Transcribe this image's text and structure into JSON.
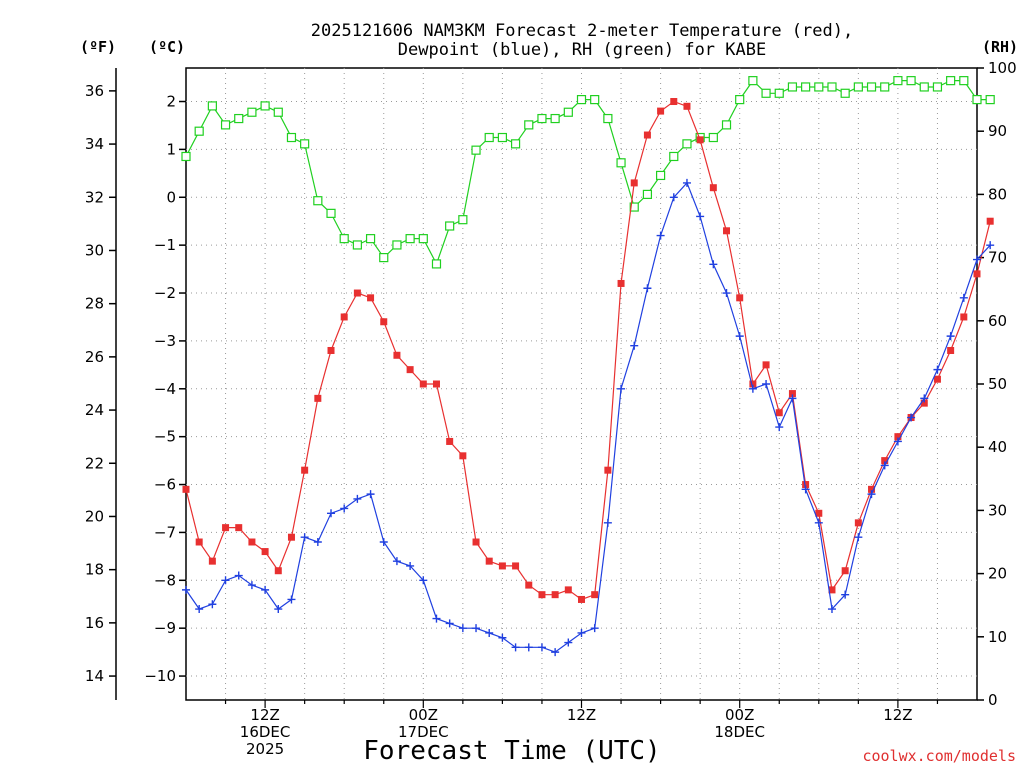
{
  "chart_data": {
    "type": "line",
    "title_line1": "2025121606 NAM3KM Forecast 2-meter Temperature (red),",
    "title_line2": "Dewpoint (blue), RH (green) for KABE",
    "axes": {
      "left_f": {
        "unit": "(ºF)",
        "ticks": [
          14,
          16,
          18,
          20,
          22,
          24,
          26,
          28,
          30,
          32,
          34,
          36
        ]
      },
      "left_c": {
        "unit": "(ºC)",
        "ticks": [
          -10,
          -9,
          -8,
          -7,
          -6,
          -5,
          -4,
          -3,
          -2,
          -1,
          0,
          1,
          2
        ],
        "ylim": [
          -10.5,
          2.7
        ]
      },
      "right_rh": {
        "unit": "(RH)",
        "ticks": [
          0,
          10,
          20,
          30,
          40,
          50,
          60,
          70,
          80,
          90,
          100
        ],
        "ylim": [
          0,
          100
        ]
      }
    },
    "x": {
      "start_hour_utc": 6,
      "end_hour": 66,
      "step_hours": 1,
      "tick_labels": [
        {
          "hour": 12,
          "lines": [
            "12Z",
            "16DEC",
            "2025"
          ]
        },
        {
          "hour": 24,
          "lines": [
            "00Z",
            "17DEC"
          ]
        },
        {
          "hour": 36,
          "lines": [
            "12Z"
          ]
        },
        {
          "hour": 48,
          "lines": [
            "00Z",
            "18DEC"
          ]
        },
        {
          "hour": 60,
          "lines": [
            "12Z"
          ]
        }
      ]
    },
    "xlabel": "Forecast Time (UTC)",
    "credit": "coolwx.com/models",
    "colors": {
      "temperature": "#e83030",
      "dewpoint": "#2040e0",
      "rh": "#20d020"
    },
    "series": [
      {
        "name": "Temperature",
        "unit": "C",
        "values": [
          -6.1,
          -7.2,
          -7.6,
          -6.9,
          -6.9,
          -7.2,
          -7.4,
          -7.8,
          -7.1,
          -5.7,
          -4.2,
          -3.2,
          -2.5,
          -2.0,
          -2.1,
          -2.6,
          -3.3,
          -3.6,
          -3.9,
          -3.9,
          -5.1,
          -5.4,
          -7.2,
          -7.6,
          -7.7,
          -7.7,
          -8.1,
          -8.3,
          -8.3,
          -8.2,
          -8.4,
          -8.3,
          -5.7,
          -1.8,
          0.3,
          1.3,
          1.8,
          2.0,
          1.9,
          1.2,
          0.2,
          -0.7,
          -2.1,
          -3.9,
          -3.5,
          -4.5,
          -4.1,
          -6.0,
          -6.6,
          -8.2,
          -7.8,
          -6.8,
          -6.1,
          -5.5,
          -5.0,
          -4.6,
          -4.3,
          -3.8,
          -3.2,
          -2.5,
          -1.6,
          -0.5
        ]
      },
      {
        "name": "Dewpoint",
        "unit": "C",
        "values": [
          -8.2,
          -8.6,
          -8.5,
          -8.0,
          -7.9,
          -8.1,
          -8.2,
          -8.6,
          -8.4,
          -7.1,
          -7.2,
          -6.6,
          -6.5,
          -6.3,
          -6.2,
          -7.2,
          -7.6,
          -7.7,
          -8.0,
          -8.8,
          -8.9,
          -9.0,
          -9.0,
          -9.1,
          -9.2,
          -9.4,
          -9.4,
          -9.4,
          -9.5,
          -9.3,
          -9.1,
          -9.0,
          -6.8,
          -4.0,
          -3.1,
          -1.9,
          -0.8,
          0.0,
          0.3,
          -0.4,
          -1.4,
          -2.0,
          -2.9,
          -4.0,
          -3.9,
          -4.8,
          -4.2,
          -6.1,
          -6.8,
          -8.6,
          -8.3,
          -7.1,
          -6.2,
          -5.6,
          -5.1,
          -4.6,
          -4.2,
          -3.6,
          -2.9,
          -2.1,
          -1.3,
          -1.0
        ]
      },
      {
        "name": "RH",
        "unit": "%",
        "values": [
          86,
          90,
          94,
          91,
          92,
          93,
          94,
          93,
          89,
          88,
          79,
          77,
          73,
          72,
          73,
          70,
          72,
          73,
          73,
          69,
          75,
          76,
          87,
          89,
          89,
          88,
          91,
          92,
          92,
          93,
          95,
          95,
          92,
          85,
          78,
          80,
          83,
          86,
          88,
          89,
          89,
          91,
          95,
          98,
          96,
          96,
          97,
          97,
          97,
          97,
          96,
          97,
          97,
          97,
          98,
          98,
          97,
          97,
          98,
          98,
          95,
          95
        ]
      }
    ]
  }
}
